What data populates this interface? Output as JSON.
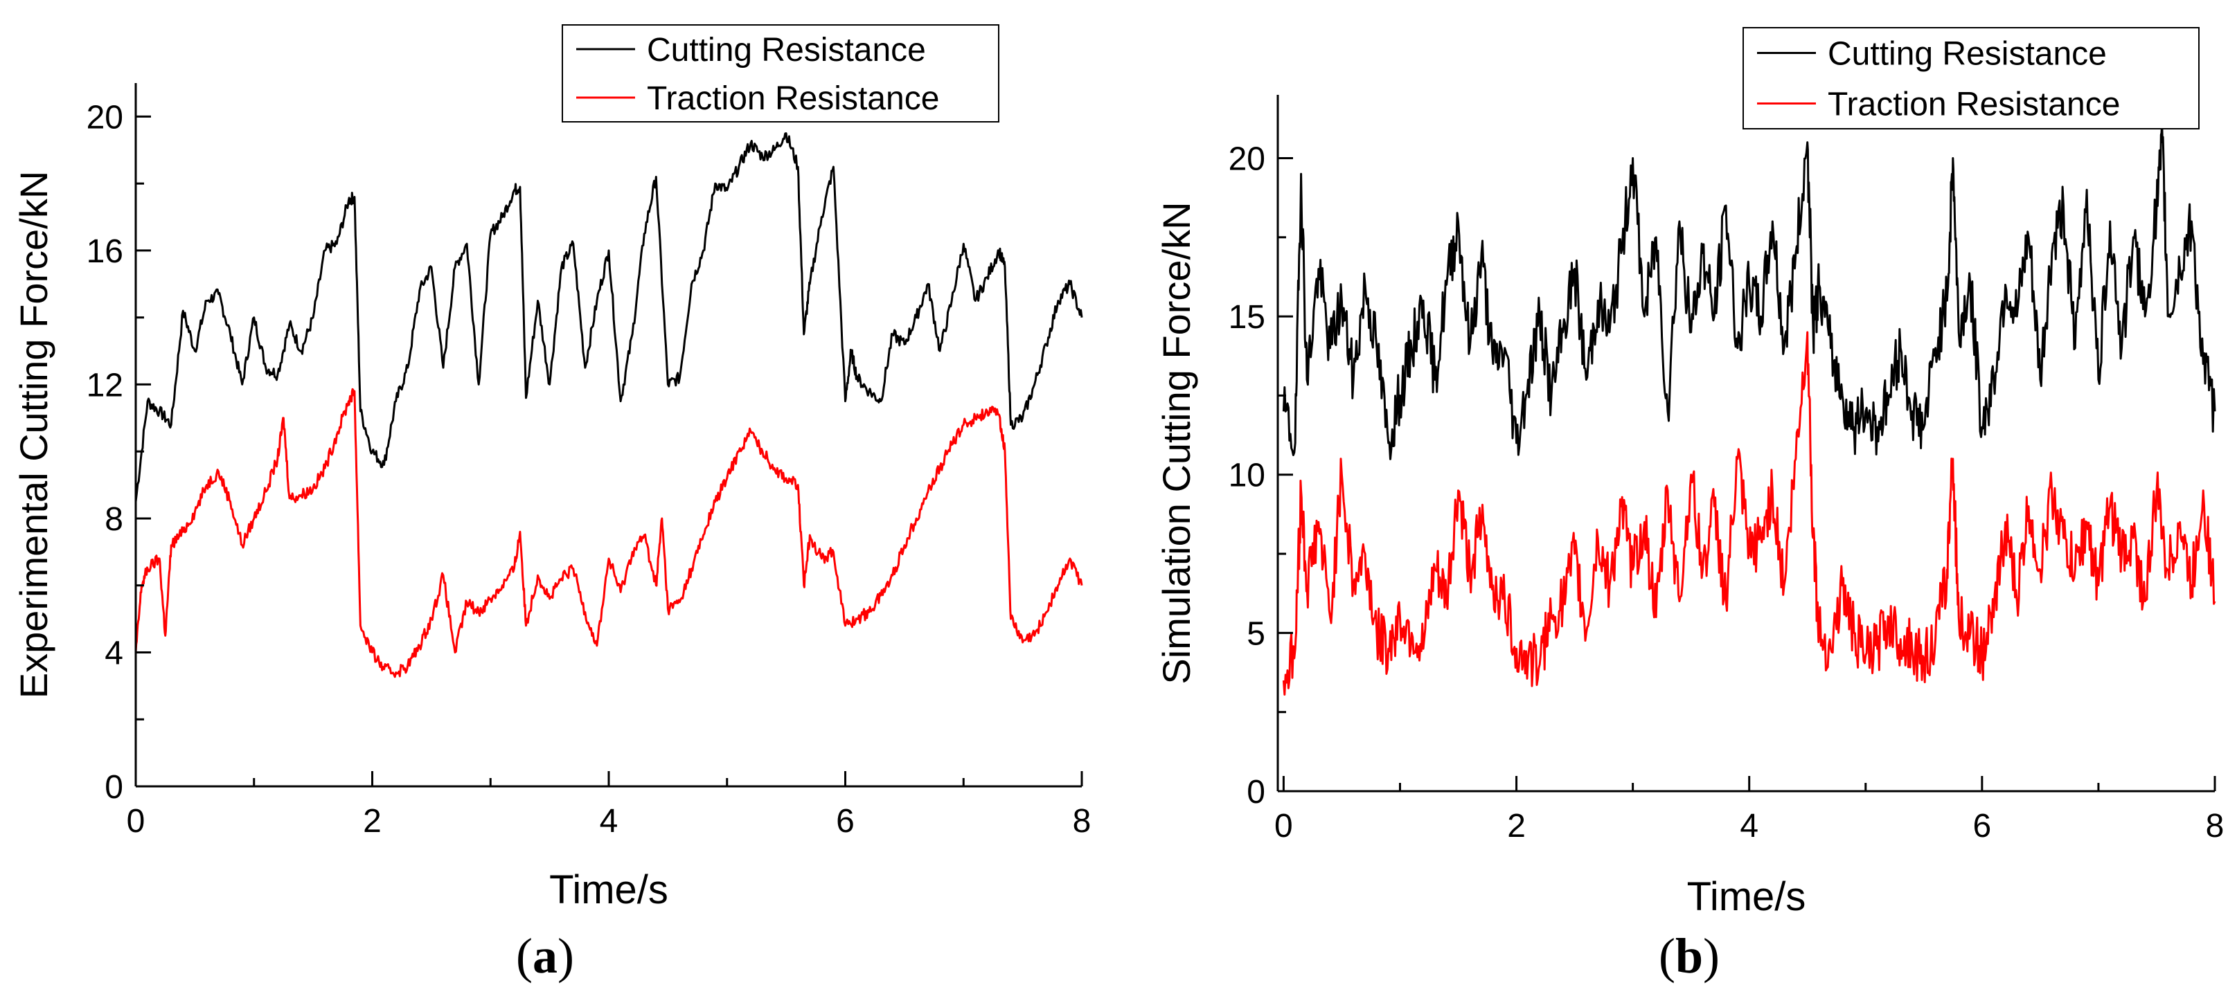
{
  "chart_data": [
    {
      "type": "line",
      "panel_label": "a",
      "xlabel": "Time/s",
      "ylabel": "Experimental Cutting Force/kN",
      "xlim": [
        0,
        8
      ],
      "ylim": [
        0,
        21
      ],
      "x_ticks": [
        "0",
        "2",
        "4",
        "6",
        "8"
      ],
      "x_tick_values": [
        0,
        2,
        4,
        6,
        8
      ],
      "y_ticks": [
        "0",
        "4",
        "8",
        "12",
        "16",
        "20"
      ],
      "y_tick_values": [
        0,
        4,
        8,
        12,
        16,
        20
      ],
      "legend_position": "top-right",
      "series": [
        {
          "name": "Cutting Resistance",
          "color": "#000000",
          "x": [
            0,
            0.1,
            0.2,
            0.3,
            0.4,
            0.5,
            0.6,
            0.7,
            0.8,
            0.9,
            1.0,
            1.1,
            1.2,
            1.3,
            1.4,
            1.5,
            1.6,
            1.7,
            1.8,
            1.85,
            1.9,
            2.0,
            2.1,
            2.2,
            2.3,
            2.4,
            2.5,
            2.6,
            2.7,
            2.8,
            2.9,
            3.0,
            3.1,
            3.2,
            3.25,
            3.3,
            3.4,
            3.5,
            3.6,
            3.7,
            3.8,
            3.9,
            4.0,
            4.1,
            4.2,
            4.3,
            4.4,
            4.5,
            4.6,
            4.7,
            4.8,
            4.9,
            5.0,
            5.1,
            5.2,
            5.3,
            5.4,
            5.5,
            5.6,
            5.65,
            5.7,
            5.8,
            5.9,
            6.0,
            6.05,
            6.1,
            6.2,
            6.3,
            6.4,
            6.5,
            6.6,
            6.7,
            6.8,
            6.9,
            7.0,
            7.1,
            7.2,
            7.3,
            7.35,
            7.4,
            7.5,
            7.6,
            7.7,
            7.8,
            7.9,
            8.0
          ],
          "values": [
            8.5,
            11.5,
            11.2,
            10.8,
            14.2,
            13.0,
            14.5,
            14.7,
            13.5,
            12.0,
            14.0,
            12.5,
            12.3,
            13.8,
            13.0,
            14.0,
            16.0,
            16.2,
            17.5,
            17.6,
            11.2,
            10.0,
            9.6,
            11.5,
            12.5,
            14.8,
            15.5,
            12.5,
            15.5,
            16.2,
            12.0,
            16.5,
            17.0,
            17.8,
            17.9,
            11.6,
            14.5,
            12.0,
            15.5,
            16.2,
            12.5,
            14.5,
            16.0,
            11.5,
            13.5,
            16.5,
            18.2,
            12.0,
            12.2,
            15.0,
            16.0,
            18.0,
            17.8,
            18.5,
            19.2,
            18.8,
            19.0,
            19.5,
            18.5,
            13.5,
            15.0,
            17.0,
            18.5,
            11.5,
            13.0,
            12.2,
            11.8,
            11.5,
            13.5,
            13.2,
            14.0,
            15.0,
            13.0,
            14.5,
            16.2,
            14.5,
            15.2,
            16.0,
            15.5,
            10.8,
            11.0,
            12.0,
            13.2,
            14.5,
            15.0,
            14.0
          ]
        },
        {
          "name": "Traction Resistance",
          "color": "#ff0000",
          "x": [
            0,
            0.05,
            0.1,
            0.2,
            0.25,
            0.3,
            0.4,
            0.5,
            0.6,
            0.7,
            0.8,
            0.9,
            1.0,
            1.1,
            1.2,
            1.25,
            1.3,
            1.4,
            1.5,
            1.6,
            1.7,
            1.8,
            1.85,
            1.9,
            2.0,
            2.1,
            2.2,
            2.3,
            2.4,
            2.5,
            2.6,
            2.7,
            2.8,
            2.9,
            3.0,
            3.1,
            3.2,
            3.25,
            3.3,
            3.4,
            3.5,
            3.6,
            3.7,
            3.8,
            3.9,
            4.0,
            4.1,
            4.2,
            4.3,
            4.4,
            4.45,
            4.5,
            4.6,
            4.7,
            4.8,
            4.9,
            5.0,
            5.1,
            5.2,
            5.3,
            5.4,
            5.5,
            5.6,
            5.65,
            5.7,
            5.8,
            5.9,
            6.0,
            6.1,
            6.2,
            6.3,
            6.4,
            6.5,
            6.6,
            6.7,
            6.8,
            6.9,
            7.0,
            7.1,
            7.2,
            7.3,
            7.35,
            7.4,
            7.5,
            7.6,
            7.7,
            7.8,
            7.9,
            8.0
          ],
          "values": [
            4.0,
            6.0,
            6.5,
            6.8,
            4.5,
            7.2,
            7.6,
            8.2,
            9.0,
            9.4,
            8.5,
            7.2,
            8.0,
            8.8,
            9.8,
            11.0,
            8.6,
            8.7,
            8.9,
            9.5,
            10.5,
            11.5,
            11.8,
            4.8,
            4.0,
            3.5,
            3.4,
            3.6,
            4.2,
            5.0,
            6.3,
            4.0,
            5.5,
            5.2,
            5.6,
            6.0,
            6.5,
            7.6,
            4.8,
            6.3,
            5.6,
            6.2,
            6.5,
            5.2,
            4.2,
            6.8,
            5.8,
            7.0,
            7.5,
            6.0,
            8.0,
            5.3,
            5.5,
            6.5,
            7.5,
            8.5,
            9.2,
            10.0,
            10.6,
            10.0,
            9.5,
            9.2,
            9.0,
            6.0,
            7.5,
            6.8,
            7.0,
            4.8,
            5.0,
            5.2,
            5.7,
            6.3,
            7.2,
            8.0,
            8.8,
            9.5,
            10.2,
            10.8,
            11.0,
            11.2,
            11.1,
            10.0,
            5.0,
            4.3,
            4.5,
            5.2,
            6.0,
            6.8,
            6.0
          ]
        }
      ]
    },
    {
      "type": "line",
      "panel_label": "b",
      "xlabel": "Time/s",
      "ylabel": "Simulation Cutting Force/kN",
      "xlim": [
        -0.05,
        8
      ],
      "ylim": [
        0,
        22
      ],
      "x_ticks": [
        "0",
        "2",
        "4",
        "6",
        "8"
      ],
      "x_tick_values": [
        0,
        2,
        4,
        6,
        8
      ],
      "y_ticks": [
        "0",
        "5",
        "10",
        "15",
        "20"
      ],
      "y_tick_values": [
        0,
        5,
        10,
        15,
        20
      ],
      "legend_position": "top-right",
      "series": [
        {
          "name": "Cutting Resistance",
          "color": "#000000",
          "x": [
            0,
            0.1,
            0.15,
            0.2,
            0.3,
            0.4,
            0.5,
            0.6,
            0.7,
            0.8,
            0.9,
            1.0,
            1.1,
            1.2,
            1.3,
            1.4,
            1.5,
            1.6,
            1.7,
            1.8,
            1.9,
            2.0,
            2.1,
            2.2,
            2.3,
            2.4,
            2.5,
            2.6,
            2.7,
            2.8,
            2.9,
            3.0,
            3.1,
            3.2,
            3.3,
            3.4,
            3.5,
            3.6,
            3.7,
            3.8,
            3.9,
            4.0,
            4.1,
            4.2,
            4.3,
            4.4,
            4.5,
            4.55,
            4.6,
            4.7,
            4.8,
            4.9,
            5.0,
            5.1,
            5.2,
            5.3,
            5.4,
            5.5,
            5.6,
            5.7,
            5.75,
            5.8,
            5.9,
            6.0,
            6.1,
            6.2,
            6.3,
            6.4,
            6.5,
            6.6,
            6.7,
            6.8,
            6.9,
            7.0,
            7.1,
            7.2,
            7.3,
            7.4,
            7.5,
            7.55,
            7.6,
            7.7,
            7.8,
            7.9,
            8.0
          ],
          "values": [
            12.0,
            11.0,
            19.5,
            13.0,
            16.5,
            14.0,
            15.5,
            13.0,
            16.0,
            14.0,
            11.0,
            12.5,
            14.0,
            15.5,
            13.0,
            16.0,
            18.0,
            14.0,
            17.0,
            13.5,
            14.0,
            11.0,
            13.0,
            15.0,
            12.5,
            14.5,
            16.5,
            13.0,
            15.5,
            14.5,
            17.0,
            20.0,
            15.0,
            17.5,
            12.0,
            18.0,
            14.5,
            17.0,
            15.0,
            18.5,
            14.0,
            16.0,
            15.0,
            18.0,
            14.0,
            17.0,
            20.5,
            14.5,
            16.0,
            14.0,
            12.5,
            11.5,
            12.0,
            11.5,
            12.5,
            14.0,
            12.0,
            11.5,
            14.0,
            15.5,
            20.0,
            14.5,
            16.0,
            11.5,
            13.0,
            16.0,
            15.0,
            17.5,
            13.0,
            17.0,
            18.5,
            14.0,
            19.0,
            13.0,
            18.0,
            14.0,
            17.5,
            15.0,
            18.5,
            20.5,
            15.0,
            16.5,
            18.0,
            13.5,
            12.0
          ]
        },
        {
          "name": "Traction Resistance",
          "color": "#ff0000",
          "x": [
            0,
            0.1,
            0.15,
            0.2,
            0.3,
            0.4,
            0.5,
            0.6,
            0.7,
            0.8,
            0.9,
            1.0,
            1.1,
            1.2,
            1.3,
            1.4,
            1.5,
            1.6,
            1.7,
            1.8,
            1.9,
            2.0,
            2.1,
            2.2,
            2.3,
            2.4,
            2.5,
            2.6,
            2.7,
            2.8,
            2.9,
            3.0,
            3.1,
            3.2,
            3.3,
            3.4,
            3.5,
            3.6,
            3.7,
            3.8,
            3.9,
            4.0,
            4.1,
            4.2,
            4.3,
            4.4,
            4.5,
            4.55,
            4.6,
            4.7,
            4.8,
            4.9,
            5.0,
            5.1,
            5.2,
            5.3,
            5.4,
            5.5,
            5.6,
            5.7,
            5.75,
            5.8,
            5.9,
            6.0,
            6.1,
            6.2,
            6.3,
            6.4,
            6.5,
            6.6,
            6.7,
            6.8,
            6.9,
            7.0,
            7.1,
            7.2,
            7.3,
            7.4,
            7.5,
            7.6,
            7.7,
            7.8,
            7.9,
            8.0
          ],
          "values": [
            3.5,
            4.5,
            9.5,
            6.5,
            8.5,
            5.5,
            10.0,
            6.5,
            7.5,
            5.0,
            4.5,
            5.5,
            5.0,
            4.5,
            7.0,
            6.0,
            9.5,
            7.0,
            8.5,
            6.5,
            6.0,
            4.5,
            4.2,
            4.0,
            5.5,
            6.0,
            7.5,
            5.0,
            8.0,
            6.5,
            9.0,
            7.0,
            8.5,
            5.5,
            9.5,
            6.0,
            10.0,
            7.0,
            9.0,
            6.0,
            10.5,
            7.5,
            8.0,
            9.5,
            6.5,
            10.5,
            14.5,
            8.0,
            5.0,
            4.5,
            6.5,
            5.0,
            4.3,
            4.5,
            5.5,
            4.8,
            4.5,
            4.2,
            4.8,
            7.0,
            10.5,
            5.5,
            5.0,
            4.3,
            5.5,
            8.5,
            6.0,
            9.0,
            7.0,
            9.5,
            8.0,
            7.0,
            8.5,
            6.5,
            9.0,
            7.5,
            8.0,
            6.0,
            9.5,
            7.0,
            8.5,
            6.5,
            9.5,
            6.0
          ]
        }
      ]
    }
  ],
  "captions": [
    "a",
    "b"
  ]
}
